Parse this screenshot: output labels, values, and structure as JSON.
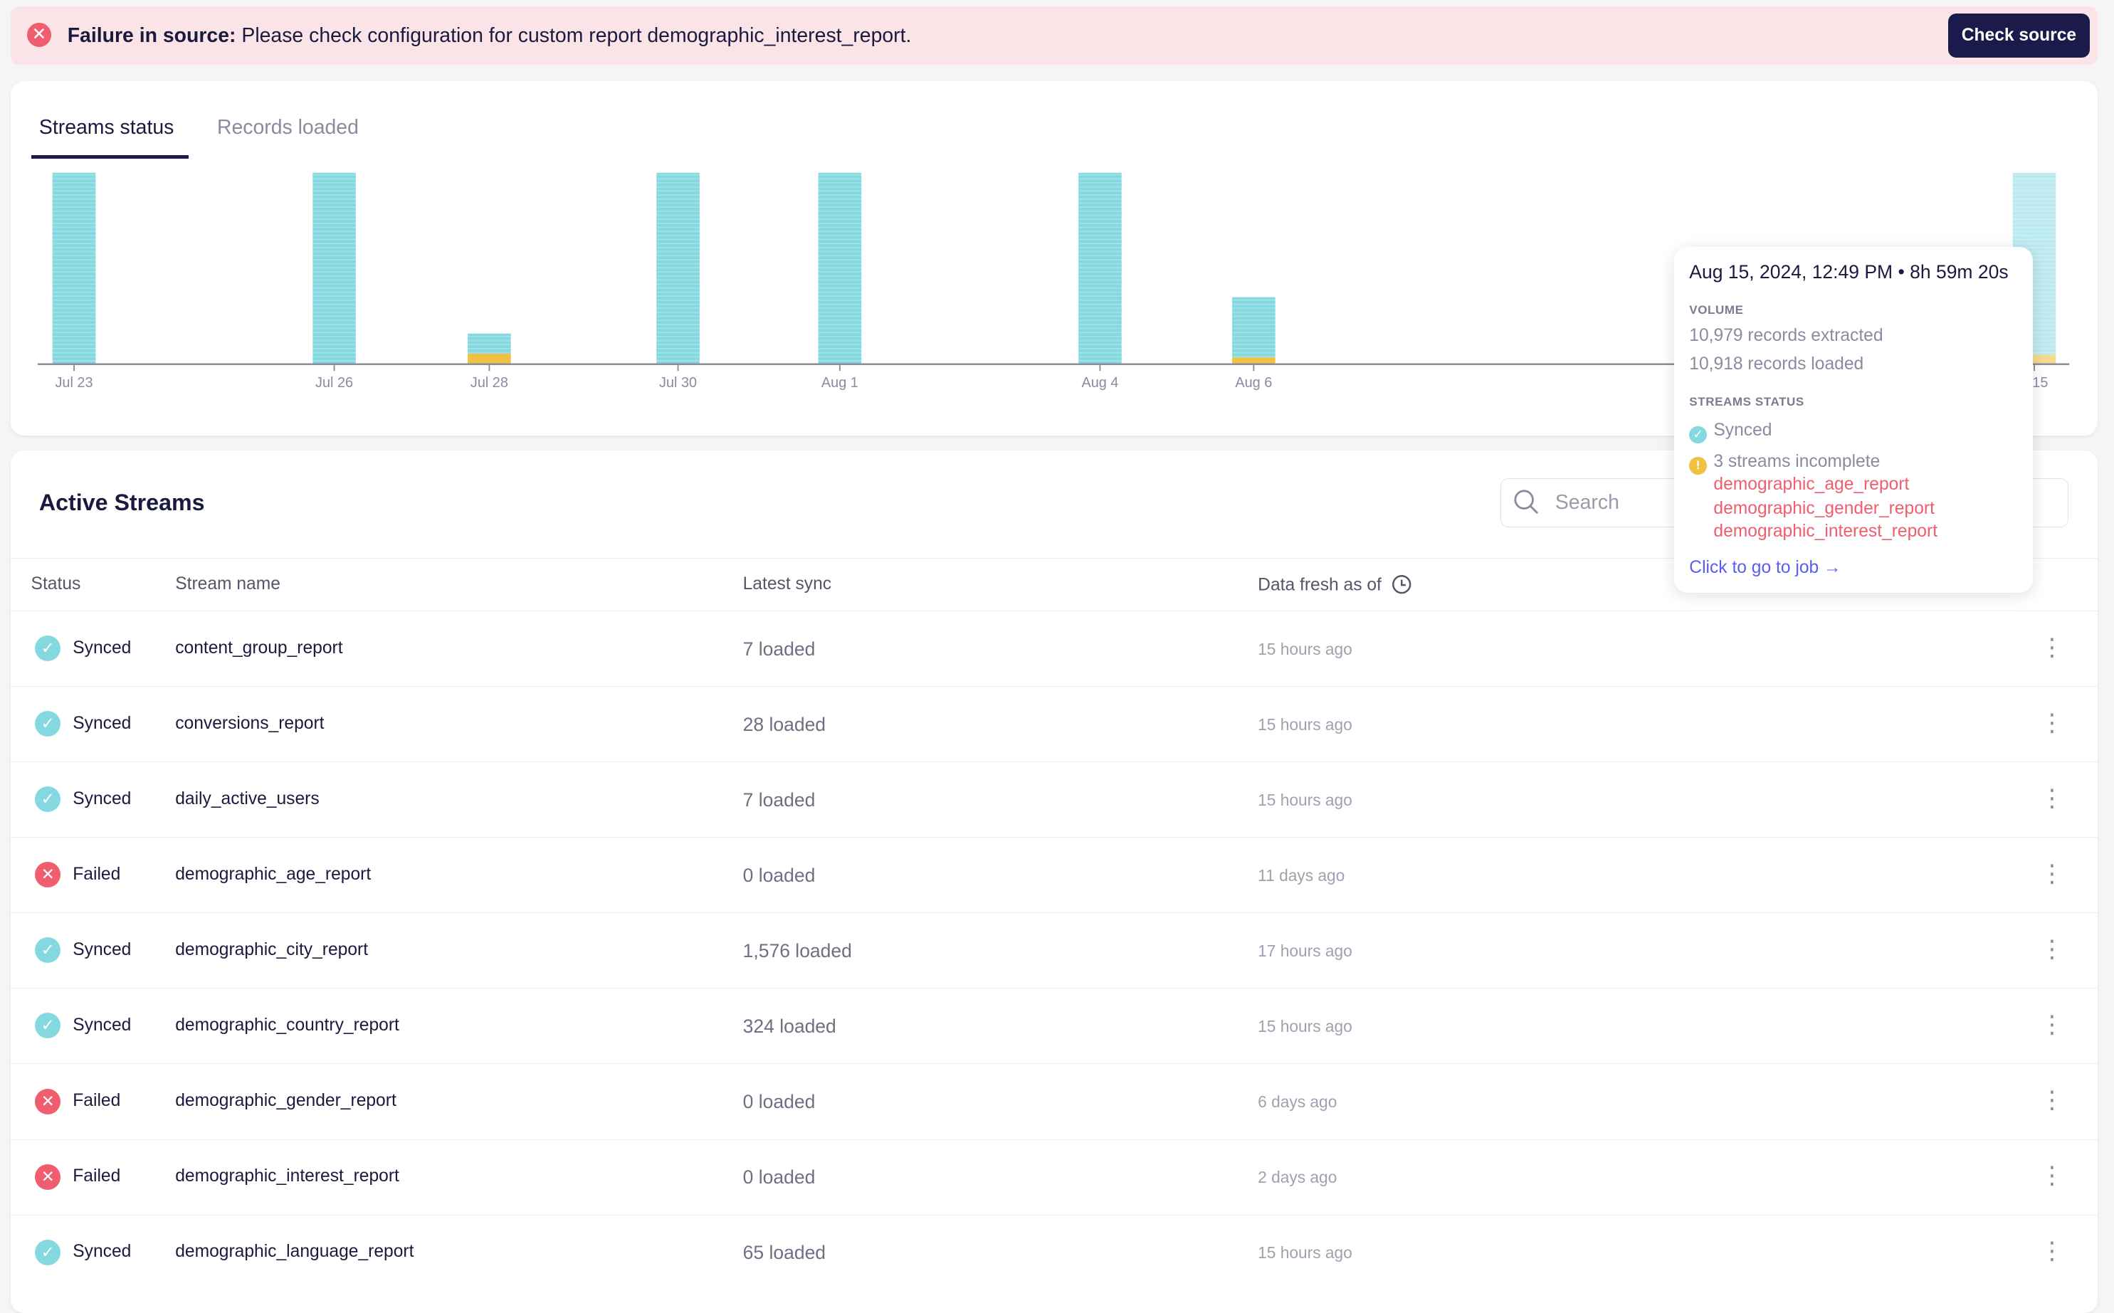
{
  "banner": {
    "icon": "x-circle-icon",
    "title": "Failure in source:",
    "message": "Please check configuration for custom report demographic_interest_report.",
    "button": "Check source"
  },
  "tabs": [
    {
      "label": "Streams status",
      "active": true
    },
    {
      "label": "Records loaded",
      "active": false
    }
  ],
  "colors": {
    "synced": "#84d8e0",
    "incomplete": "#f0c142",
    "failed": "#ef5d6e",
    "accent": "#1a1a4b",
    "link": "#5b5bf5"
  },
  "chart_data": {
    "type": "bar",
    "stacked": true,
    "categories": [
      "Jul 23",
      "Jul 26",
      "Jul 28",
      "Jul 30",
      "Aug 1",
      "Aug 4",
      "Aug 6",
      "Aug 15"
    ],
    "tick_labels": [
      "Jul 23",
      "Jul 26",
      "Jul 28",
      "Jul 30",
      "Aug 1",
      "Aug 4",
      "Aug 6",
      "g 15"
    ],
    "series": [
      {
        "key": "synced",
        "values": [
          100,
          100,
          10.5,
          100,
          100,
          100,
          31.5,
          95
        ]
      },
      {
        "key": "incomplete",
        "values": [
          0,
          0,
          5.5,
          0,
          0,
          0,
          3.5,
          5
        ]
      }
    ],
    "highlighted": "Aug 15",
    "grid": false
  },
  "tooltip": {
    "title": "Aug 15, 2024, 12:49 PM • 8h 59m 20s",
    "volume_label": "VOLUME",
    "extracted": "10,979 records extracted",
    "loaded": "10,918 records loaded",
    "status_label": "STREAMS STATUS",
    "synced": "Synced",
    "incomplete": "3 streams incomplete",
    "incomplete_streams": [
      "demographic_age_report",
      "demographic_gender_report",
      "demographic_interest_report"
    ],
    "link": "Click to go to job →"
  },
  "streams": {
    "title": "Active Streams",
    "search_placeholder": "Search",
    "columns": [
      "Status",
      "Stream name",
      "Latest sync",
      "Data fresh as of"
    ],
    "rows": [
      {
        "status": "Synced",
        "name": "content_group_report",
        "latest": "7 loaded",
        "fresh": "15 hours ago"
      },
      {
        "status": "Synced",
        "name": "conversions_report",
        "latest": "28 loaded",
        "fresh": "15 hours ago"
      },
      {
        "status": "Synced",
        "name": "daily_active_users",
        "latest": "7 loaded",
        "fresh": "15 hours ago"
      },
      {
        "status": "Failed",
        "name": "demographic_age_report",
        "latest": "0 loaded",
        "fresh": "11 days ago"
      },
      {
        "status": "Synced",
        "name": "demographic_city_report",
        "latest": "1,576 loaded",
        "fresh": "17 hours ago"
      },
      {
        "status": "Synced",
        "name": "demographic_country_report",
        "latest": "324 loaded",
        "fresh": "15 hours ago"
      },
      {
        "status": "Failed",
        "name": "demographic_gender_report",
        "latest": "0 loaded",
        "fresh": "6 days ago"
      },
      {
        "status": "Failed",
        "name": "demographic_interest_report",
        "latest": "0 loaded",
        "fresh": "2 days ago"
      },
      {
        "status": "Synced",
        "name": "demographic_language_report",
        "latest": "65 loaded",
        "fresh": "15 hours ago"
      }
    ]
  }
}
